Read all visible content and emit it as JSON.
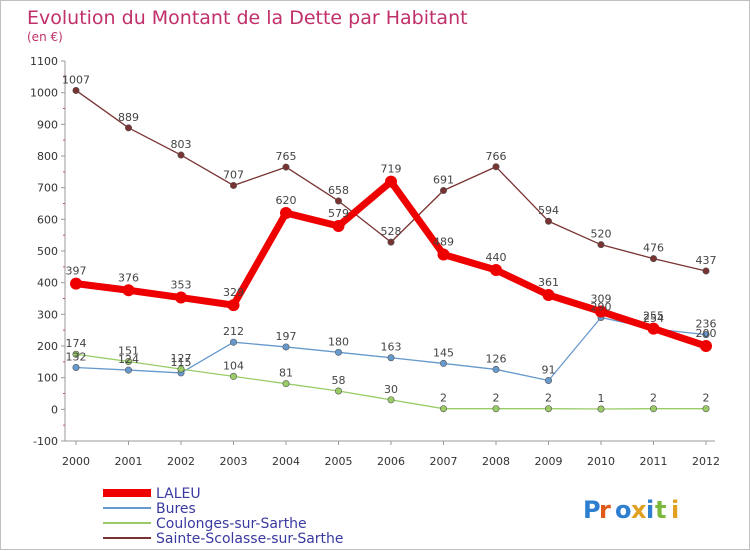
{
  "title": "Evolution du Montant de la Dette par Habitant",
  "subtitle": "(en €)",
  "logo_text": "Proxiti",
  "chart_data": {
    "type": "line",
    "title": "Evolution du Montant de la Dette par Habitant",
    "subtitle": "(en €)",
    "x": [
      "2000",
      "2001",
      "2002",
      "2003",
      "2004",
      "2005",
      "2006",
      "2007",
      "2008",
      "2009",
      "2010",
      "2011",
      "2012"
    ],
    "ylim": [
      -100,
      1100
    ],
    "yticks": [
      "-100",
      "0",
      "100",
      "200",
      "300",
      "400",
      "500",
      "600",
      "700",
      "800",
      "900",
      "1000",
      "1100"
    ],
    "grid": false,
    "legend_position": "bottom-left",
    "series": [
      {
        "name": "LALEU",
        "color": "#ee0000",
        "values": [
          397,
          376,
          353,
          329,
          620,
          579,
          719,
          489,
          440,
          361,
          309,
          255,
          200
        ]
      },
      {
        "name": "Bures",
        "color": "#6699cc",
        "values": [
          132,
          124,
          115,
          212,
          197,
          180,
          163,
          145,
          126,
          91,
          290,
          254,
          236
        ]
      },
      {
        "name": "Coulonges-sur-Sarthe",
        "color": "#99cc66",
        "values": [
          174,
          151,
          127,
          104,
          81,
          58,
          30,
          2,
          2,
          2,
          1,
          2,
          2
        ]
      },
      {
        "name": "Sainte-Scolasse-sur-Sarthe",
        "color": "#7a3333",
        "values": [
          1007,
          889,
          803,
          707,
          765,
          658,
          528,
          691,
          766,
          594,
          520,
          476,
          437
        ]
      }
    ]
  }
}
